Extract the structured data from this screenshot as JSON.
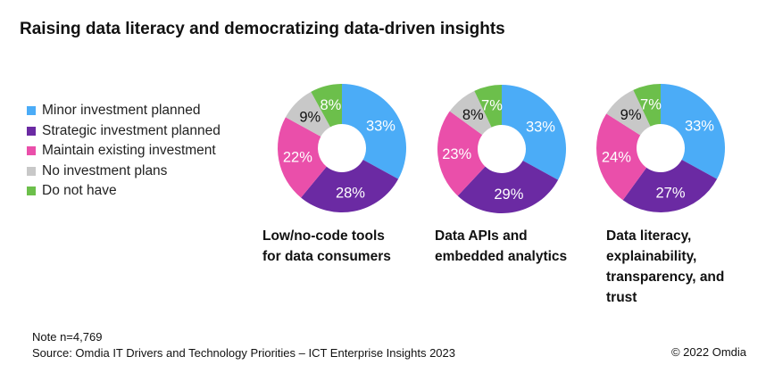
{
  "title": "Raising data literacy and democratizing data-driven insights",
  "chart_data": [
    {
      "type": "pie",
      "donut": true,
      "title": "Low/no-code tools for data consumers",
      "categories": [
        "Minor investment planned",
        "Strategic investment planned",
        "Maintain existing investment",
        "No investment plans",
        "Do not have"
      ],
      "values": [
        33,
        28,
        22,
        9,
        8
      ],
      "labels": [
        "33%",
        "28%",
        "22%",
        "9%",
        "8%"
      ]
    },
    {
      "type": "pie",
      "donut": true,
      "title": "Data APIs and embedded analytics",
      "categories": [
        "Minor investment planned",
        "Strategic investment planned",
        "Maintain existing investment",
        "No investment plans",
        "Do not have"
      ],
      "values": [
        33,
        29,
        23,
        8,
        7
      ],
      "labels": [
        "33%",
        "29%",
        "23%",
        "8%",
        "7%"
      ]
    },
    {
      "type": "pie",
      "donut": true,
      "title": "Data literacy, explainability, transparency, and trust",
      "categories": [
        "Minor investment planned",
        "Strategic investment planned",
        "Maintain existing investment",
        "No investment plans",
        "Do not have"
      ],
      "values": [
        33,
        27,
        24,
        9,
        7
      ],
      "labels": [
        "33%",
        "27%",
        "24%",
        "9%",
        "7%"
      ]
    }
  ],
  "legend": [
    {
      "label": "Minor investment planned",
      "color": "#4BACF7"
    },
    {
      "label": "Strategic investment planned",
      "color": "#6B2AA3"
    },
    {
      "label": "Maintain existing investment",
      "color": "#EA4FAA"
    },
    {
      "label": "No investment plans",
      "color": "#C8C8C8"
    },
    {
      "label": "Do not have",
      "color": "#6CBF4B"
    }
  ],
  "label_colors": [
    "#ffffff",
    "#ffffff",
    "#ffffff",
    "#111111",
    "#ffffff"
  ],
  "chart_titles": [
    "Low/no-code tools\nfor data consumers",
    "Data APIs and\nembedded analytics",
    "Data literacy,\nexplainability,\ntransparency, and\ntrust"
  ],
  "note": "Note n=4,769",
  "source": "Source: Omdia IT Drivers and Technology Priorities – ICT Enterprise Insights 2023",
  "copyright": "© 2022 Omdia"
}
